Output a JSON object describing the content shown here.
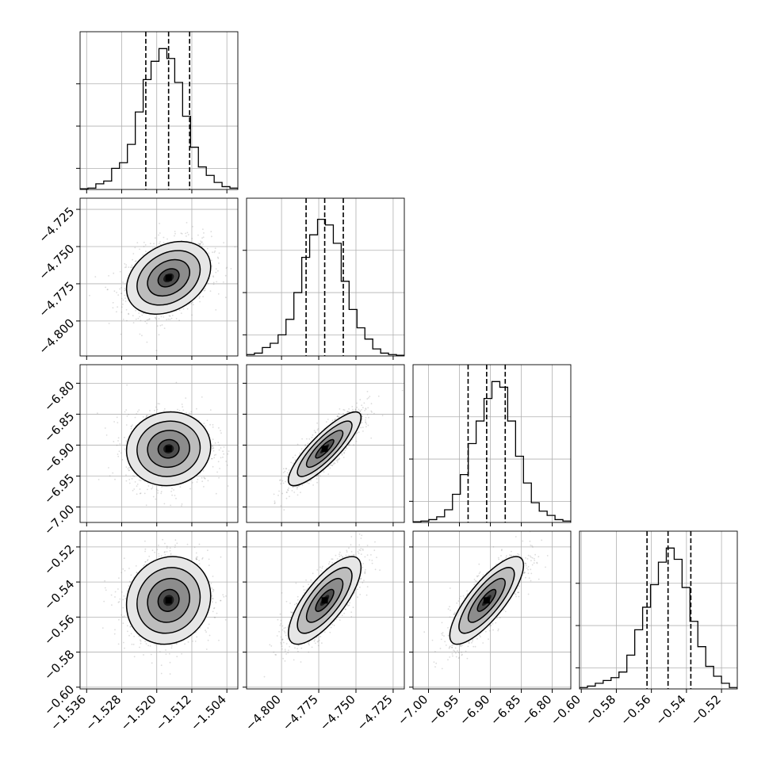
{
  "chart_data": {
    "type": "corner",
    "grid": true,
    "quantile_lines": true,
    "parameters": [
      {
        "range": [
          -1.5375,
          -1.5015
        ],
        "ticks": [
          -1.536,
          -1.528,
          -1.52,
          -1.512,
          -1.504
        ],
        "tick_labels": [
          "−1.536",
          "−1.528",
          "−1.520",
          "−1.512",
          "−1.504"
        ],
        "hist_yticks": [
          0.15,
          0.45,
          0.75
        ],
        "quantiles": [
          -1.5225,
          -1.5173,
          -1.5125
        ],
        "median": -1.5173,
        "sigma": 0.0048,
        "hist": [
          0.005,
          0.01,
          0.04,
          0.06,
          0.15,
          0.19,
          0.32,
          0.55,
          0.78,
          0.91,
          1.0,
          0.93,
          0.76,
          0.52,
          0.3,
          0.16,
          0.1,
          0.05,
          0.02,
          0.01
        ]
      },
      {
        "range": [
          -4.8235,
          -4.7175
        ],
        "ticks": [
          -4.8,
          -4.775,
          -4.75,
          -4.725
        ],
        "tick_labels": [
          "−4.800",
          "−4.775",
          "−4.750",
          "−4.725"
        ],
        "hist_yticks": [
          0.15,
          0.45,
          0.75
        ],
        "quantiles": [
          -4.7835,
          -4.771,
          -4.7585
        ],
        "median": -4.771,
        "sigma": 0.0122,
        "hist": [
          0.01,
          0.02,
          0.06,
          0.09,
          0.15,
          0.26,
          0.45,
          0.7,
          0.86,
          0.97,
          0.93,
          0.8,
          0.53,
          0.33,
          0.2,
          0.12,
          0.05,
          0.02,
          0.01,
          0.005
        ]
      },
      {
        "range": [
          -7.025,
          -6.77
        ],
        "ticks": [
          -7.0,
          -6.95,
          -6.9,
          -6.85,
          -6.8
        ],
        "tick_labels": [
          "−7.00",
          "−6.95",
          "−6.90",
          "−6.85",
          "−6.80"
        ],
        "hist_yticks": [
          0.15,
          0.45,
          0.75
        ],
        "quantiles": [
          -6.936,
          -6.906,
          -6.876
        ],
        "median": -6.906,
        "sigma": 0.0298,
        "hist": [
          0.005,
          0.01,
          0.02,
          0.04,
          0.09,
          0.2,
          0.34,
          0.56,
          0.72,
          0.88,
          1.0,
          0.96,
          0.72,
          0.47,
          0.28,
          0.14,
          0.08,
          0.05,
          0.02,
          0.01
        ]
      },
      {
        "range": [
          -0.601,
          -0.511
        ],
        "ticks": [
          -0.6,
          -0.58,
          -0.56,
          -0.54,
          -0.52
        ],
        "tick_labels": [
          "−0.60",
          "−0.58",
          "−0.56",
          "−0.54",
          "−0.52"
        ],
        "hist_yticks": [
          0.15,
          0.45,
          0.75
        ],
        "quantiles": [
          -0.5625,
          -0.5505,
          -0.5375
        ],
        "median": -0.5505,
        "sigma": 0.0125,
        "hist": [
          0.01,
          0.02,
          0.04,
          0.06,
          0.08,
          0.12,
          0.24,
          0.42,
          0.58,
          0.74,
          0.9,
          1.0,
          0.92,
          0.72,
          0.48,
          0.3,
          0.16,
          0.09,
          0.04,
          0.01
        ]
      }
    ],
    "pair_correlations": {
      "1_0": 0.3,
      "2_0": 0.05,
      "2_1": 0.85,
      "3_0": 0.1,
      "3_1": 0.75,
      "3_2": 0.8
    },
    "contour_levels_sigma": [
      0.5,
      1.0,
      1.5,
      2.0
    ],
    "colors": {
      "line": "#000000",
      "grid": "#b0b0b0",
      "scatter": "#808080",
      "density_dark": "#000000",
      "density_light": "#ffffff"
    }
  }
}
